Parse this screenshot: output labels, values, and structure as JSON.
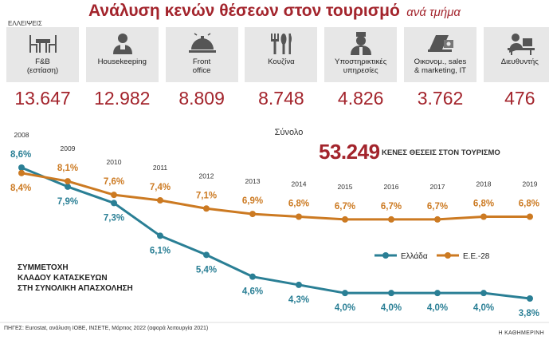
{
  "header": {
    "title_main": "Ανάλυση κενών θέσεων στον τουρισμό",
    "title_sub": "ανά τμήμα",
    "shortage_label": "ΕΛΛΕΙΨΕΙΣ"
  },
  "departments": [
    {
      "label": "F&B\n(εστίαση)",
      "value": "13.647",
      "icon": "dining-table-icon"
    },
    {
      "label": "Housekeeping",
      "value": "12.982",
      "icon": "housekeeper-icon"
    },
    {
      "label": "Front\noffice",
      "value": "8.809",
      "icon": "service-bell-icon"
    },
    {
      "label": "Κουζίνα",
      "value": "8.748",
      "icon": "cutlery-icon"
    },
    {
      "label": "Υποστηρικτικές\nυπηρεσίες",
      "value": "4.826",
      "icon": "bellboy-icon"
    },
    {
      "label": "Οικονομ., sales\n& marketing, IT",
      "value": "3.762",
      "icon": "money-laptop-icon"
    },
    {
      "label": "Διευθυντής",
      "value": "476",
      "icon": "manager-desk-icon"
    }
  ],
  "total": {
    "label": "Σύνολο",
    "value": "53.249",
    "description": "ΚΕΝΕΣ ΘΕΣΕΙΣ ΣΤΟΝ ΤΟΥΡΙΣΜΟ"
  },
  "note": "ΣΥΜΜΕΤΟΧΗ\nΚΛΑΔΟΥ ΚΑΤΑΣΚΕΥΩΝ\nΣΤΗ ΣΥΝΟΛΙΚΗ ΑΠΑΣΧΟΛΗΣΗ",
  "sources": "ΠΗΓΕΣ: Eurostat, ανάλυση ΙΟΒΕ, ΙΝΣΕΤΕ, Μάρτιος 2022 (αφορά λειτουργία 2021)",
  "credit": "Η ΚΑΘΗΜΕΡΙΝΗ",
  "colors": {
    "accent": "#a3242c",
    "greece": "#2a7f95",
    "eu": "#cc7a22",
    "card_bg": "#e7e7e7"
  },
  "chart_data": {
    "type": "line",
    "x": [
      2008,
      2009,
      2010,
      2011,
      2012,
      2013,
      2014,
      2015,
      2016,
      2017,
      2018,
      2019
    ],
    "series": [
      {
        "name": "Ελλάδα",
        "values": [
          8.6,
          7.9,
          7.3,
          6.1,
          5.4,
          4.6,
          4.3,
          4.0,
          4.0,
          4.0,
          4.0,
          3.8
        ],
        "labels": [
          "8,6%",
          "7,9%",
          "7,3%",
          "6,1%",
          "5,4%",
          "4,6%",
          "4,3%",
          "4,0%",
          "4,0%",
          "4,0%",
          "4,0%",
          "3,8%"
        ]
      },
      {
        "name": "Ε.Ε.-28",
        "values": [
          8.4,
          8.1,
          7.6,
          7.4,
          7.1,
          6.9,
          6.8,
          6.7,
          6.7,
          6.7,
          6.8,
          6.8
        ],
        "labels": [
          "8,4%",
          "8,1%",
          "7,6%",
          "7,4%",
          "7,1%",
          "6,9%",
          "6,8%",
          "6,7%",
          "6,7%",
          "6,7%",
          "6,8%",
          "6,8%"
        ]
      }
    ],
    "grid": false,
    "legend": "bottom-right"
  }
}
